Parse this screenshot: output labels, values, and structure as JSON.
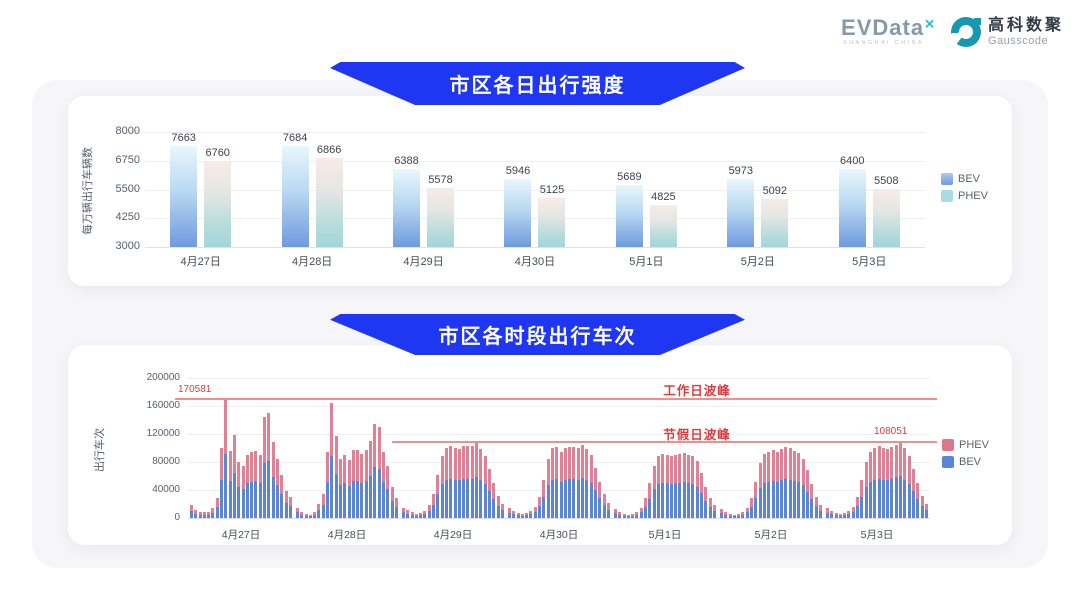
{
  "brand": {
    "evdata_text": "EVData",
    "evdata_sup": "✕",
    "evdata_sub": "SHANGHAI CHINA",
    "gausscode_cn": "高科数聚",
    "gausscode_en": "Gausscode"
  },
  "colors": {
    "banner_blue": "#1f36f2",
    "bev_blue": "#5c85d6",
    "phev_pink": "#e27f95",
    "legend_bev_gradient_blue": "#7fb0e6",
    "legend_phev_teal": "#abdbe1",
    "annotation_red": "#e23a3a"
  },
  "chart_data": [
    {
      "type": "bar",
      "title": "市区各日出行强度",
      "ylabel": "每万辆出行车辆数",
      "ylim": [
        3000,
        8000
      ],
      "yticks": [
        3000,
        4250,
        5500,
        6750,
        8000
      ],
      "grid": true,
      "legend_position": "right",
      "legend": [
        "BEV",
        "PHEV"
      ],
      "categories": [
        "4月27日",
        "4月28日",
        "4月29日",
        "4月30日",
        "5月1日",
        "5月2日",
        "5月3日"
      ],
      "series": [
        {
          "name": "BEV",
          "values": [
            7663,
            7684,
            6388,
            5946,
            5689,
            5973,
            6400
          ]
        },
        {
          "name": "PHEV",
          "values": [
            6760,
            6866,
            5578,
            5125,
            4825,
            5092,
            5508
          ]
        }
      ]
    },
    {
      "type": "bar",
      "stacked": true,
      "title": "市区各时段出行车次",
      "ylabel": "出行车次",
      "ylim": [
        0,
        200000
      ],
      "yticks": [
        0,
        40000,
        80000,
        120000,
        160000,
        200000
      ],
      "grid": true,
      "legend_position": "right",
      "legend": [
        "PHEV",
        "BEV"
      ],
      "categories": [
        "4月27日",
        "4月28日",
        "4月29日",
        "4月30日",
        "5月1日",
        "5月2日",
        "5月3日"
      ],
      "x_unit": "hour-of-day (24 bars per day, estimated values)",
      "annotations": {
        "workday": {
          "label": "工作日波峰",
          "line_value": 170000,
          "value_label": "170581"
        },
        "holiday": {
          "label": "节假日波峰",
          "line_value": 108000,
          "value_label": "108051"
        }
      },
      "days": [
        {
          "date": "4月27日",
          "bev": [
            10000,
            6500,
            5000,
            4500,
            5000,
            7500,
            15500,
            54000,
            91000,
            53000,
            64000,
            44000,
            41500,
            49500,
            52000,
            53000,
            49500,
            78000,
            81000,
            59000,
            47000,
            34000,
            21000,
            16500
          ],
          "phev": [
            8000,
            5500,
            4000,
            3500,
            4000,
            6500,
            12500,
            46000,
            79581,
            43000,
            55000,
            36000,
            33500,
            40500,
            43000,
            43000,
            40500,
            67000,
            69000,
            49000,
            38000,
            28000,
            17000,
            13500
          ]
        },
        {
          "date": "4月28日",
          "bev": [
            8000,
            5000,
            3500,
            3000,
            4500,
            11000,
            19000,
            51000,
            88000,
            63000,
            46500,
            49500,
            45500,
            53500,
            53500,
            50500,
            53500,
            60000,
            73000,
            70000,
            52000,
            41000,
            25000,
            15500
          ],
          "phev": [
            7000,
            4000,
            2500,
            2000,
            3500,
            9000,
            16000,
            44000,
            77000,
            54000,
            38500,
            40500,
            37500,
            43500,
            43500,
            41500,
            43500,
            50000,
            62000,
            60000,
            43000,
            34000,
            20000,
            12500
          ]
        },
        {
          "date": "4月29日",
          "bev": [
            8000,
            6000,
            4500,
            3500,
            4000,
            5500,
            10000,
            19000,
            34000,
            48000,
            55000,
            56500,
            55000,
            54000,
            56500,
            56500,
            56500,
            59000,
            54000,
            48000,
            38500,
            27500,
            17500,
            11000
          ],
          "phev": [
            7000,
            5000,
            3500,
            2500,
            3000,
            4500,
            8000,
            16000,
            28000,
            40000,
            45000,
            46500,
            45000,
            44000,
            46500,
            46500,
            46500,
            49000,
            44000,
            40000,
            31500,
            22500,
            14500,
            9000
          ]
        },
        {
          "date": "4月30日",
          "bev": [
            7500,
            5500,
            4000,
            3500,
            4000,
            5500,
            9000,
            16500,
            30000,
            46500,
            55000,
            56000,
            52000,
            55000,
            56000,
            56000,
            55000,
            57000,
            54000,
            49500,
            39500,
            28500,
            18500,
            12000
          ],
          "phev": [
            6500,
            4500,
            3000,
            2500,
            3000,
            4500,
            7000,
            13500,
            25000,
            38500,
            45000,
            46000,
            43000,
            45000,
            46000,
            46000,
            45000,
            47000,
            44000,
            40500,
            32500,
            23500,
            15500,
            10000
          ]
        },
        {
          "date": "5月1日",
          "bev": [
            7000,
            5000,
            3500,
            3000,
            3500,
            5000,
            8000,
            15500,
            27500,
            41000,
            48500,
            50500,
            49500,
            48500,
            49500,
            50500,
            51000,
            49500,
            48500,
            45000,
            36000,
            25000,
            15500,
            10000
          ],
          "phev": [
            6000,
            4000,
            2500,
            2000,
            2500,
            4000,
            7000,
            12500,
            22500,
            34000,
            39500,
            41500,
            40500,
            39500,
            40500,
            41500,
            42000,
            40500,
            39500,
            37000,
            29000,
            20000,
            12500,
            8000
          ]
        },
        {
          "date": "5月2日",
          "bev": [
            7000,
            5000,
            3500,
            3000,
            3500,
            5000,
            8000,
            15500,
            28500,
            43000,
            50500,
            52000,
            53500,
            52000,
            54000,
            56000,
            55000,
            53000,
            51000,
            47000,
            37500,
            26500,
            16500,
            10500
          ],
          "phev": [
            6000,
            4000,
            2500,
            2000,
            2500,
            4000,
            7000,
            12500,
            23500,
            35000,
            41500,
            43000,
            43500,
            43000,
            44000,
            46000,
            45000,
            43000,
            42000,
            38000,
            30500,
            21500,
            13500,
            8500
          ]
        },
        {
          "date": "5月3日",
          "bev": [
            7500,
            5500,
            4000,
            3500,
            4000,
            5500,
            9000,
            16500,
            30000,
            44000,
            52000,
            55000,
            56500,
            55000,
            54000,
            56000,
            58000,
            59451,
            55000,
            48500,
            38500,
            27500,
            17500,
            11000
          ],
          "phev": [
            6500,
            4500,
            3000,
            2500,
            3000,
            4500,
            7000,
            13500,
            25000,
            36000,
            43000,
            45000,
            46500,
            45000,
            44000,
            46000,
            47000,
            48600,
            45000,
            39500,
            31500,
            22500,
            14500,
            9000
          ]
        }
      ]
    }
  ]
}
